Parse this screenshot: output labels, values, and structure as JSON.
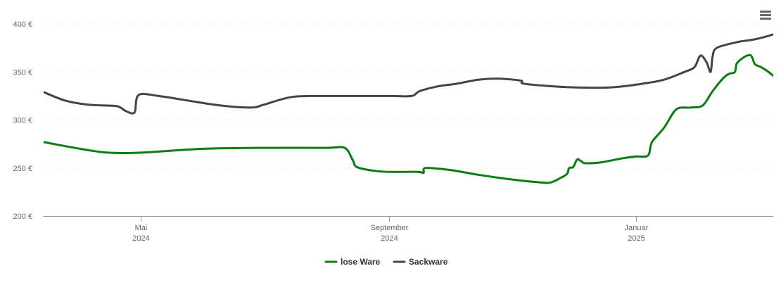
{
  "chart_data": {
    "type": "line",
    "title": "",
    "xlabel": "",
    "ylabel": "",
    "ylim": [
      200,
      400
    ],
    "yticks": [
      200,
      250,
      300,
      350,
      400
    ],
    "ytick_labels": [
      "200 €",
      "250 €",
      "300 €",
      "350 €",
      "400 €"
    ],
    "xlim": [
      "2024-03-14",
      "2025-03-10"
    ],
    "xticks": [
      {
        "date": "2024-05-01",
        "line1": "Mai",
        "line2": "2024"
      },
      {
        "date": "2024-09-01",
        "line1": "September",
        "line2": "2024"
      },
      {
        "date": "2025-01-01",
        "line1": "Januar",
        "line2": "2025"
      }
    ],
    "grid": true,
    "legend_position": "bottom-center",
    "series": [
      {
        "name": "lose Ware",
        "color": "#0a7d12",
        "points": [
          [
            "2024-03-14",
            277
          ],
          [
            "2024-04-01",
            270
          ],
          [
            "2024-04-15",
            266
          ],
          [
            "2024-05-01",
            266
          ],
          [
            "2024-06-01",
            270
          ],
          [
            "2024-07-01",
            271
          ],
          [
            "2024-08-01",
            271
          ],
          [
            "2024-08-10",
            271
          ],
          [
            "2024-08-14",
            258
          ],
          [
            "2024-08-16",
            251
          ],
          [
            "2024-08-25",
            247
          ],
          [
            "2024-09-01",
            246
          ],
          [
            "2024-09-15",
            246
          ],
          [
            "2024-09-18",
            245
          ],
          [
            "2024-09-19",
            250
          ],
          [
            "2024-10-01",
            248
          ],
          [
            "2024-10-15",
            243
          ],
          [
            "2024-11-01",
            238
          ],
          [
            "2024-11-15",
            235
          ],
          [
            "2024-11-20",
            235
          ],
          [
            "2024-11-25",
            240
          ],
          [
            "2024-11-28",
            244
          ],
          [
            "2024-11-29",
            250
          ],
          [
            "2024-12-01",
            251
          ],
          [
            "2024-12-03",
            259
          ],
          [
            "2024-12-05",
            257
          ],
          [
            "2024-12-07",
            255
          ],
          [
            "2024-12-15",
            256
          ],
          [
            "2024-12-25",
            260
          ],
          [
            "2025-01-01",
            262
          ],
          [
            "2025-01-07",
            263
          ],
          [
            "2025-01-09",
            277
          ],
          [
            "2025-01-15",
            292
          ],
          [
            "2025-01-21",
            311
          ],
          [
            "2025-01-28",
            313
          ],
          [
            "2025-02-03",
            315
          ],
          [
            "2025-02-08",
            330
          ],
          [
            "2025-02-13",
            343
          ],
          [
            "2025-02-16",
            348
          ],
          [
            "2025-02-19",
            350
          ],
          [
            "2025-02-20",
            359
          ],
          [
            "2025-02-24",
            366
          ],
          [
            "2025-02-27",
            367
          ],
          [
            "2025-03-01",
            358
          ],
          [
            "2025-03-04",
            355
          ],
          [
            "2025-03-07",
            351
          ],
          [
            "2025-03-10",
            346
          ]
        ]
      },
      {
        "name": "Sackware",
        "color": "#444444",
        "points": [
          [
            "2024-03-14",
            329
          ],
          [
            "2024-03-25",
            320
          ],
          [
            "2024-04-05",
            316
          ],
          [
            "2024-04-15",
            315
          ],
          [
            "2024-04-20",
            314
          ],
          [
            "2024-04-24",
            309
          ],
          [
            "2024-04-28",
            308
          ],
          [
            "2024-04-30",
            326
          ],
          [
            "2024-05-10",
            325
          ],
          [
            "2024-05-25",
            320
          ],
          [
            "2024-06-10",
            315
          ],
          [
            "2024-06-25",
            313
          ],
          [
            "2024-07-01",
            316
          ],
          [
            "2024-07-15",
            324
          ],
          [
            "2024-08-01",
            325
          ],
          [
            "2024-09-01",
            325
          ],
          [
            "2024-09-12",
            325
          ],
          [
            "2024-09-16",
            330
          ],
          [
            "2024-09-25",
            335
          ],
          [
            "2024-10-05",
            338
          ],
          [
            "2024-10-15",
            342
          ],
          [
            "2024-10-25",
            343
          ],
          [
            "2024-11-05",
            341
          ],
          [
            "2024-11-06",
            338
          ],
          [
            "2024-11-15",
            336
          ],
          [
            "2024-12-01",
            334
          ],
          [
            "2024-12-20",
            334
          ],
          [
            "2025-01-05",
            338
          ],
          [
            "2025-01-15",
            342
          ],
          [
            "2025-01-25",
            350
          ],
          [
            "2025-01-30",
            355
          ],
          [
            "2025-02-02",
            367
          ],
          [
            "2025-02-05",
            360
          ],
          [
            "2025-02-07",
            350
          ],
          [
            "2025-02-08",
            366
          ],
          [
            "2025-02-10",
            375
          ],
          [
            "2025-02-20",
            381
          ],
          [
            "2025-03-01",
            384
          ],
          [
            "2025-03-10",
            389
          ]
        ]
      }
    ]
  },
  "menu": {
    "icon": "hamburger-menu-icon"
  }
}
